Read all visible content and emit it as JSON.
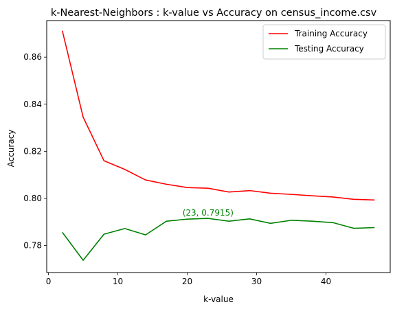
{
  "chart_data": {
    "type": "line",
    "title": "k-Nearest-Neighbors : k-value vs Accuracy on census_income.csv",
    "xlabel": "k-value",
    "ylabel": "Accuracy",
    "xlim": [
      -0.25,
      49.25
    ],
    "ylim": [
      0.7685,
      0.8755
    ],
    "xticks": [
      0,
      10,
      20,
      30,
      40
    ],
    "xtick_labels": [
      "0",
      "10",
      "20",
      "30",
      "40"
    ],
    "yticks": [
      0.78,
      0.8,
      0.82,
      0.84,
      0.86
    ],
    "ytick_labels": [
      "0.78",
      "0.80",
      "0.82",
      "0.84",
      "0.86"
    ],
    "grid": false,
    "legend_position": "top-right",
    "x": [
      2,
      5,
      8,
      11,
      14,
      17,
      20,
      23,
      26,
      29,
      32,
      35,
      38,
      41,
      44,
      47
    ],
    "series": [
      {
        "name": "Training Accuracy",
        "color": "#ff0000",
        "values": [
          0.8712,
          0.8345,
          0.816,
          0.8123,
          0.8078,
          0.806,
          0.8046,
          0.8043,
          0.8027,
          0.8033,
          0.8022,
          0.8017,
          0.8011,
          0.8006,
          0.7996,
          0.7993
        ]
      },
      {
        "name": "Testing Accuracy",
        "color": "#008000",
        "values": [
          0.7856,
          0.7737,
          0.7848,
          0.7872,
          0.7845,
          0.7903,
          0.7912,
          0.7915,
          0.7903,
          0.7913,
          0.7894,
          0.7907,
          0.7903,
          0.7897,
          0.7873,
          0.7876
        ]
      }
    ],
    "annotation": {
      "text": "(23, 0.7915)",
      "x": 23,
      "y": 0.7915,
      "color": "#008000"
    }
  }
}
